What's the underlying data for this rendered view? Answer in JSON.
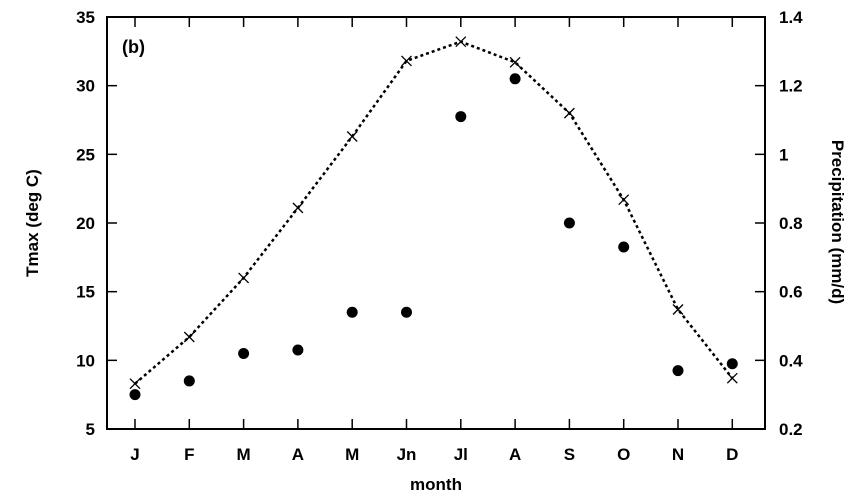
{
  "chart_data": {
    "type": "scatter",
    "panel_label": "(b)",
    "xlabel": "month",
    "ylabel_left": "Tmax (deg C)",
    "ylabel_right": "Precipitation (mm/d)",
    "categories": [
      "J",
      "F",
      "M",
      "A",
      "M",
      "Jn",
      "Jl",
      "A",
      "S",
      "O",
      "N",
      "D"
    ],
    "ylim_left": [
      5,
      35
    ],
    "yticks_left": [
      5,
      10,
      15,
      20,
      25,
      30,
      35
    ],
    "ylim_right": [
      0.2,
      1.4
    ],
    "yticks_right": [
      "0.2",
      "0.4",
      "0.6",
      "0.8",
      "1",
      "1.2",
      "1.4"
    ],
    "grid": false,
    "series": [
      {
        "axis": "left",
        "style": "dotted line with x markers",
        "values": [
          8.3,
          11.7,
          16.0,
          21.1,
          26.3,
          31.8,
          33.2,
          31.7,
          28.0,
          21.7,
          13.7,
          8.7
        ]
      },
      {
        "axis": "right",
        "style": "filled circle markers",
        "values": [
          0.3,
          0.34,
          0.42,
          0.43,
          0.54,
          0.54,
          1.11,
          1.22,
          0.8,
          0.73,
          0.37,
          0.39
        ]
      }
    ],
    "colors": {
      "line": "#000000",
      "markers": "#000000",
      "axes": "#000000"
    }
  }
}
